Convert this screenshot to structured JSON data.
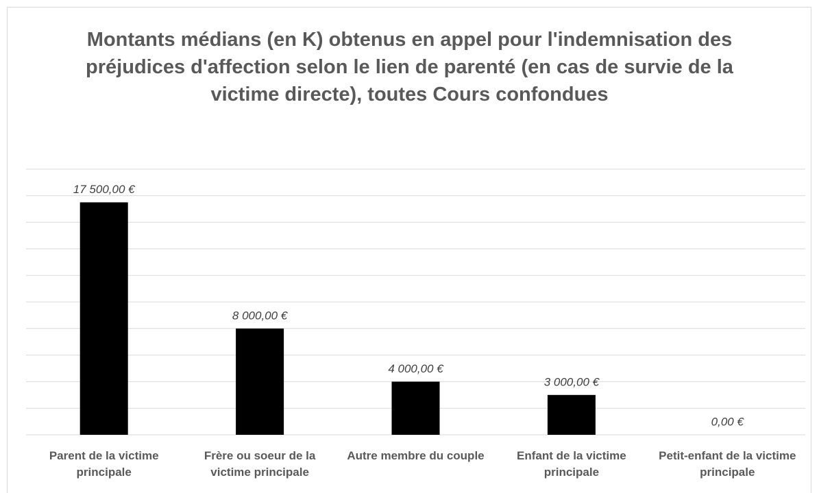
{
  "chart_data": {
    "type": "bar",
    "title": "Montants médians (en K) obtenus en appel pour l'indemnisation des préjudices d'affection selon le lien de parenté (en cas de survie de la victime directe), toutes Cours confondues",
    "categories": [
      "Parent de la victime principale",
      "Frère ou soeur de la victime principale",
      "Autre membre du couple",
      "Enfant de la victime principale",
      "Petit-enfant de la victime principale"
    ],
    "values": [
      17500,
      8000,
      4000,
      3000,
      0
    ],
    "value_labels": [
      "17 500,00 €",
      "8 000,00 €",
      "4 000,00 €",
      "3 000,00 €",
      "0,00 €"
    ],
    "color": "#000000",
    "ylim": [
      0,
      20000
    ],
    "yticks": [
      0,
      2000,
      4000,
      6000,
      8000,
      10000,
      12000,
      14000,
      16000,
      18000,
      20000
    ],
    "grid": true
  }
}
